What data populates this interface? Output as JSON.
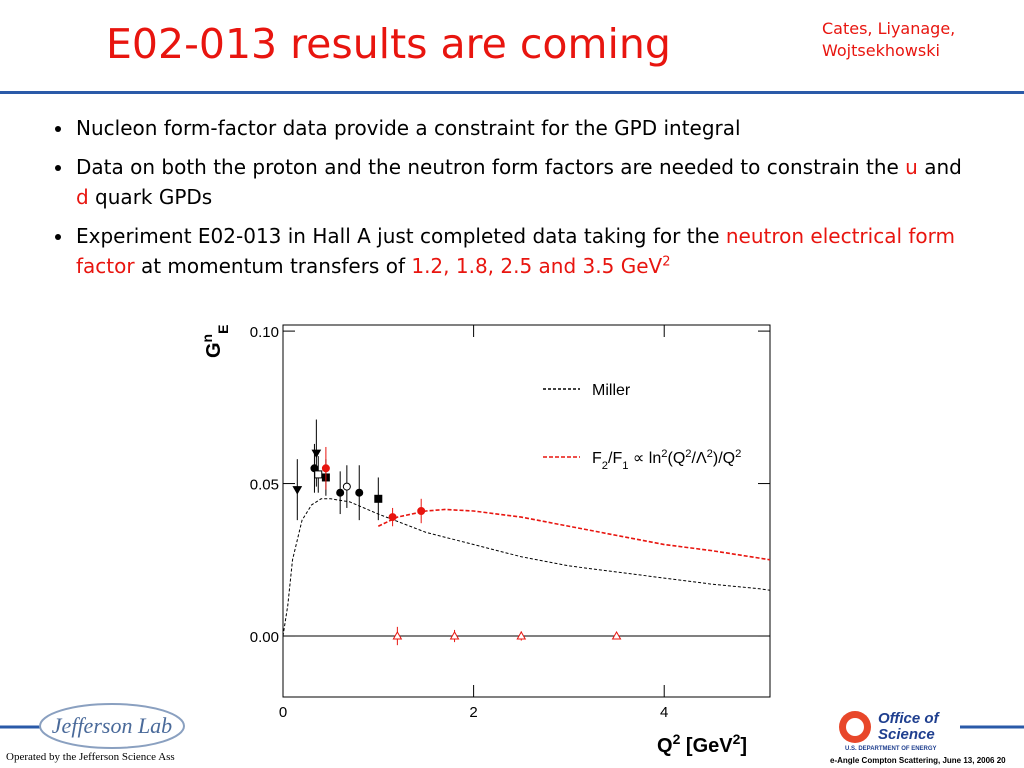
{
  "header": {
    "title": "E02-013 results are coming",
    "authors": [
      "Cates, Liyanage,",
      "Wojtsekhowski"
    ]
  },
  "bullets": [
    [
      {
        "text": "Nucleon form-factor data provide a constraint for the GPD integral"
      }
    ],
    [
      {
        "text": "Data on both the proton and the neutron form factors are needed to constrain the "
      },
      {
        "text": "u",
        "color": "#e8150f"
      },
      {
        "text": " and "
      },
      {
        "text": "d",
        "color": "#e8150f"
      },
      {
        "text": " quark GPDs"
      }
    ],
    [
      {
        "text": "Experiment E02-013 in Hall A just completed data taking for the "
      },
      {
        "text": "neutron electrical form factor",
        "color": "#e8150f"
      },
      {
        "text": " at momentum transfers of "
      },
      {
        "text": "1.2, 1.8, 2.5 and 3.5 GeV",
        "color": "#e8150f"
      },
      {
        "text": "2",
        "color": "#e8150f",
        "shift": "super"
      }
    ]
  ],
  "chart_data": {
    "type": "scatter",
    "xlim": [
      0,
      5.11
    ],
    "ylim": [
      -0.02,
      0.102
    ],
    "xticks": [
      0,
      2,
      4
    ],
    "yticks": [
      {
        "value": 0,
        "label": "0.00"
      },
      {
        "value": 0.05,
        "label": "0.05"
      },
      {
        "value": 0.1,
        "label": "0.10"
      }
    ],
    "zero_line": true,
    "legend": "upper right",
    "x_label": [
      {
        "text": "Q"
      },
      {
        "text": "2",
        "shift": "super"
      },
      {
        "text": "  [GeV"
      },
      {
        "text": "2",
        "shift": "super"
      },
      {
        "text": "]"
      }
    ],
    "y_label": [
      {
        "text": "G"
      },
      {
        "text": "n",
        "shift": "super"
      },
      {
        "text": "E",
        "shift": "sub"
      }
    ],
    "series": [
      {
        "name": [
          {
            "text": "Miller"
          }
        ],
        "type": "line",
        "color": "#000000",
        "dash": "3,2",
        "x": [
          0,
          0.05,
          0.1,
          0.2,
          0.3,
          0.4,
          0.5,
          0.7,
          1.0,
          1.5,
          2,
          2.5,
          3,
          3.5,
          4,
          4.5,
          5,
          5.11
        ],
        "values": [
          0.0,
          0.01,
          0.025,
          0.038,
          0.043,
          0.045,
          0.045,
          0.044,
          0.04,
          0.034,
          0.03,
          0.026,
          0.023,
          0.021,
          0.019,
          0.017,
          0.0155,
          0.015
        ]
      },
      {
        "name": [
          {
            "text": "F"
          },
          {
            "text": "2",
            "shift": "sub"
          },
          {
            "text": "/F"
          },
          {
            "text": "1",
            "shift": "sub"
          },
          {
            "text": " ∝ ln"
          },
          {
            "text": "2",
            "shift": "super"
          },
          {
            "text": "(Q"
          },
          {
            "text": "2",
            "shift": "super"
          },
          {
            "text": "/Λ"
          },
          {
            "text": "2",
            "shift": "super"
          },
          {
            "text": ")/Q"
          },
          {
            "text": "2",
            "shift": "super"
          }
        ],
        "type": "line",
        "color": "#e8150f",
        "dash": "4,2",
        "x": [
          1.0,
          1.2,
          1.5,
          1.7,
          2,
          2.5,
          3,
          3.5,
          4,
          4.5,
          5.11
        ],
        "values": [
          0.036,
          0.039,
          0.041,
          0.0415,
          0.041,
          0.039,
          0.036,
          0.033,
          0.03,
          0.028,
          0.025
        ]
      },
      {
        "type": "points",
        "color": "#000000",
        "x": [
          0.15,
          0.33,
          0.35,
          0.37,
          0.45,
          0.6,
          0.67,
          0.8,
          1.0
        ],
        "values": [
          0.048,
          0.055,
          0.06,
          0.053,
          0.052,
          0.047,
          0.049,
          0.047,
          0.045
        ],
        "errors": [
          0.01,
          0.008,
          0.011,
          0.006,
          0.006,
          0.007,
          0.007,
          0.009,
          0.007
        ],
        "markers": [
          "triangle-down",
          "circle",
          "triangle-down",
          "open-square",
          "square",
          "circle",
          "open-circle",
          "circle",
          "square"
        ]
      },
      {
        "type": "points",
        "color": "#e8150f",
        "x": [
          0.45,
          1.15,
          1.45
        ],
        "values": [
          0.055,
          0.039,
          0.041
        ],
        "errors": [
          0.007,
          0.003,
          0.004
        ],
        "markers": [
          "circle",
          "circle",
          "circle"
        ]
      },
      {
        "type": "points",
        "color": "#e8150f",
        "x": [
          1.2,
          1.8,
          2.5,
          3.5
        ],
        "values": [
          0,
          0,
          0,
          0
        ],
        "errors": [
          0.003,
          0.002,
          0.0015,
          0.001
        ],
        "markers": [
          "open-triangle",
          "open-triangle",
          "open-triangle",
          "open-triangle"
        ]
      }
    ]
  },
  "footer": {
    "lab_logo": "Jefferson Lab",
    "operator": "Operated by the Jefferson Science Ass",
    "doe_logo": [
      "Office of",
      "Science",
      "U.S. DEPARTMENT OF ENERGY"
    ],
    "event": "e-Angle Compton Scattering, June 13, 2006 20"
  }
}
